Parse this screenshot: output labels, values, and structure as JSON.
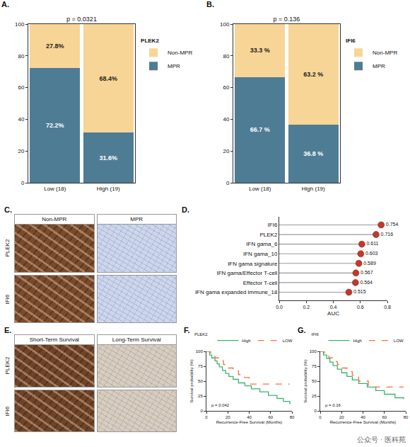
{
  "chart_data": [
    {
      "panel": "A.",
      "type": "bar",
      "stacked": true,
      "title": "p = 0.0321",
      "legend_title": "PLEK2",
      "legend": "right",
      "categories": [
        "Low (18)",
        "High (19)"
      ],
      "series": [
        {
          "name": "Non-MPR",
          "color": "#F7D596",
          "values": [
            27.8,
            68.4
          ],
          "value_labels": [
            "27.8%",
            "68.4%"
          ]
        },
        {
          "name": "MPR",
          "color": "#4F7C95",
          "values": [
            72.2,
            31.6
          ],
          "value_labels": [
            "72.2%",
            "31.6%"
          ]
        }
      ],
      "ylim": [
        0,
        100
      ],
      "yticks": [
        0,
        20,
        40,
        60,
        80,
        100
      ],
      "data_labels": true
    },
    {
      "panel": "B.",
      "type": "bar",
      "stacked": true,
      "title": "p = 0.136",
      "legend_title": "IFI6",
      "legend": "right",
      "categories": [
        "Low (18)",
        "High (19)"
      ],
      "series": [
        {
          "name": "Non-MPR",
          "color": "#F7D596",
          "values": [
            33.3,
            63.2
          ],
          "value_labels": [
            "33.3 %",
            "63.2 %"
          ]
        },
        {
          "name": "MPR",
          "color": "#4F7C95",
          "values": [
            66.7,
            36.8
          ],
          "value_labels": [
            "66.7 %",
            "36.8 %"
          ]
        }
      ],
      "ylim": [
        0,
        100
      ],
      "yticks": [
        0,
        20,
        40,
        60,
        80,
        100
      ],
      "data_labels": true
    },
    {
      "panel": "D.",
      "type": "lollipop",
      "orientation": "horizontal",
      "color": "#C0392B",
      "xlabel": "AUC",
      "categories": [
        "IFI6",
        "PLEK2",
        "IFN gama_6",
        "IFN gama_10",
        "IFN gama signature",
        "IFN gama/Effector T-cell",
        "Effector T-cell",
        "IFN gama expanded immune_18"
      ],
      "values": [
        0.754,
        0.716,
        0.611,
        0.603,
        0.589,
        0.567,
        0.564,
        0.515
      ],
      "xlim": [
        0,
        0.8
      ],
      "xticks": [
        {
          "value": 0,
          "label": "0.0"
        },
        {
          "value": 0.2,
          "label": "0.2"
        },
        {
          "value": 0.4,
          "label": "0.4"
        },
        {
          "value": 0.6,
          "label": "0.6"
        },
        {
          "value": 0.8,
          "label": "0.8"
        }
      ],
      "data_labels": true
    },
    {
      "panel": "F.",
      "type": "line",
      "legend_title": "PLEK2",
      "legend": "top",
      "annotation": "p = 0.042",
      "xlabel": "Recurrence-Free Survival (Months)",
      "ylabel": "Survival probability (%)",
      "series": [
        {
          "name": "High",
          "color": "#3CB371",
          "line_style": "solid",
          "x": [
            0,
            3,
            5,
            8,
            10,
            12,
            15,
            18,
            21,
            25,
            30,
            36,
            42,
            50,
            58,
            66,
            72,
            78
          ],
          "values": [
            100,
            94,
            89,
            84,
            79,
            74,
            68,
            63,
            58,
            53,
            47,
            42,
            37,
            32,
            26,
            21,
            16,
            11
          ]
        },
        {
          "name": "LOW",
          "color": "#F4743B",
          "line_style": "dash",
          "x": [
            0,
            4,
            8,
            12,
            16,
            20,
            25,
            30,
            35,
            40,
            60,
            78
          ],
          "values": [
            100,
            95,
            89,
            84,
            78,
            72,
            67,
            61,
            56,
            45,
            45,
            45
          ]
        }
      ],
      "xlim": [
        0,
        80
      ],
      "xticks": [
        0,
        20,
        40,
        60,
        80
      ],
      "ylim": [
        0,
        100
      ],
      "yticks": [
        0,
        25,
        50,
        75,
        100
      ]
    },
    {
      "panel": "G.",
      "type": "line",
      "legend_title": "IFI6",
      "legend": "top",
      "annotation": "p = 0.16",
      "xlabel": "Recurrence-Free Survival (Months)",
      "ylabel": "Survival probability (%)",
      "series": [
        {
          "name": "High",
          "color": "#3CB371",
          "line_style": "solid",
          "x": [
            0,
            3,
            6,
            9,
            12,
            16,
            20,
            25,
            30,
            36,
            44,
            52,
            60,
            70,
            78
          ],
          "values": [
            100,
            94,
            88,
            82,
            76,
            70,
            64,
            58,
            52,
            46,
            40,
            34,
            28,
            22,
            20
          ]
        },
        {
          "name": "LOW",
          "color": "#F4743B",
          "line_style": "dash",
          "x": [
            0,
            4,
            8,
            12,
            16,
            20,
            25,
            30,
            36,
            45,
            60,
            78
          ],
          "values": [
            100,
            94,
            89,
            83,
            78,
            72,
            66,
            60,
            50,
            40,
            40,
            40
          ]
        }
      ],
      "xlim": [
        0,
        80
      ],
      "xticks": [
        0,
        20,
        40,
        60,
        80
      ],
      "ylim": [
        0,
        100
      ],
      "yticks": [
        0,
        25,
        50,
        75,
        100
      ]
    }
  ],
  "images": [
    {
      "panel": "C.",
      "rows": [
        "PLEK2",
        "IFI6"
      ],
      "columns": [
        "Non-MPR",
        "MPR"
      ]
    },
    {
      "panel": "E.",
      "rows": [
        "PLEK2",
        "IFI6"
      ],
      "columns": [
        "Short-Term Survival",
        "Long-Term Survival"
      ]
    }
  ],
  "watermark": "公众号 · 医科苑"
}
